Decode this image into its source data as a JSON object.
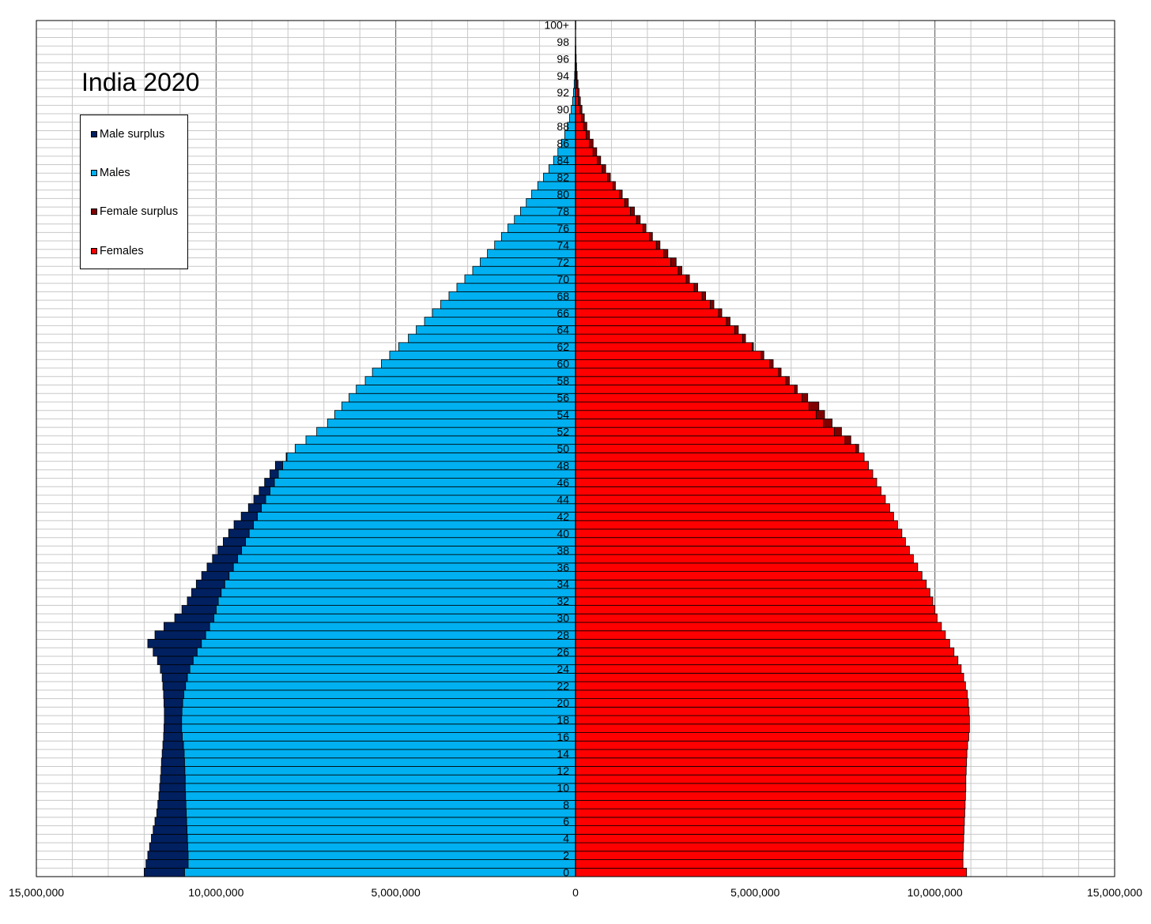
{
  "chart_data": {
    "type": "bar",
    "orientation": "horizontal-population-pyramid",
    "title": "India 2020",
    "age_labels": [
      "0",
      "2",
      "4",
      "6",
      "8",
      "10",
      "12",
      "14",
      "16",
      "18",
      "20",
      "22",
      "24",
      "26",
      "28",
      "30",
      "32",
      "34",
      "36",
      "38",
      "40",
      "42",
      "44",
      "46",
      "48",
      "50",
      "52",
      "54",
      "56",
      "58",
      "60",
      "62",
      "64",
      "66",
      "68",
      "70",
      "72",
      "74",
      "76",
      "78",
      "80",
      "82",
      "84",
      "86",
      "88",
      "90",
      "92",
      "94",
      "96",
      "98",
      "100+"
    ],
    "ages": [
      0,
      1,
      2,
      3,
      4,
      5,
      6,
      7,
      8,
      9,
      10,
      11,
      12,
      13,
      14,
      15,
      16,
      17,
      18,
      19,
      20,
      21,
      22,
      23,
      24,
      25,
      26,
      27,
      28,
      29,
      30,
      31,
      32,
      33,
      34,
      35,
      36,
      37,
      38,
      39,
      40,
      41,
      42,
      43,
      44,
      45,
      46,
      47,
      48,
      49,
      50,
      51,
      52,
      53,
      54,
      55,
      56,
      57,
      58,
      59,
      60,
      61,
      62,
      63,
      64,
      65,
      66,
      67,
      68,
      69,
      70,
      71,
      72,
      73,
      74,
      75,
      76,
      77,
      78,
      79,
      80,
      81,
      82,
      83,
      84,
      85,
      86,
      87,
      88,
      89,
      90,
      91,
      92,
      93,
      94,
      95,
      96,
      97,
      98,
      99,
      100
    ],
    "males": [
      12000000,
      11950000,
      11900000,
      11850000,
      11800000,
      11750000,
      11700000,
      11650000,
      11620000,
      11590000,
      11570000,
      11550000,
      11530000,
      11520000,
      11500000,
      11480000,
      11460000,
      11450000,
      11440000,
      11440000,
      11450000,
      11460000,
      11480000,
      11500000,
      11550000,
      11630000,
      11750000,
      11900000,
      11700000,
      11450000,
      11150000,
      10950000,
      10800000,
      10680000,
      10550000,
      10400000,
      10250000,
      10100000,
      9950000,
      9800000,
      9650000,
      9500000,
      9300000,
      9100000,
      8950000,
      8800000,
      8650000,
      8500000,
      8350000,
      8050000,
      7800000,
      7500000,
      7200000,
      6900000,
      6700000,
      6500000,
      6300000,
      6100000,
      5850000,
      5650000,
      5400000,
      5170000,
      4920000,
      4650000,
      4430000,
      4200000,
      3980000,
      3750000,
      3520000,
      3300000,
      3080000,
      2860000,
      2650000,
      2450000,
      2250000,
      2060000,
      1880000,
      1700000,
      1530000,
      1370000,
      1220000,
      1050000,
      890000,
      740000,
      610000,
      490000,
      390000,
      300000,
      225000,
      165000,
      118000,
      82000,
      56000,
      37000,
      24000,
      15000,
      9000,
      5500,
      3200,
      1900,
      3500
    ],
    "females": [
      10880000,
      10780000,
      10780000,
      10790000,
      10800000,
      10810000,
      10820000,
      10830000,
      10840000,
      10850000,
      10860000,
      10860000,
      10870000,
      10880000,
      10890000,
      10910000,
      10940000,
      10960000,
      10960000,
      10950000,
      10930000,
      10900000,
      10850000,
      10800000,
      10730000,
      10640000,
      10530000,
      10410000,
      10290000,
      10180000,
      10060000,
      10000000,
      9940000,
      9860000,
      9760000,
      9640000,
      9520000,
      9400000,
      9290000,
      9180000,
      9080000,
      8960000,
      8850000,
      8740000,
      8620000,
      8500000,
      8380000,
      8270000,
      8150000,
      8030000,
      7880000,
      7660000,
      7400000,
      7140000,
      6930000,
      6770000,
      6460000,
      6170000,
      5950000,
      5720000,
      5500000,
      5240000,
      4950000,
      4730000,
      4530000,
      4300000,
      4070000,
      3850000,
      3620000,
      3400000,
      3170000,
      2960000,
      2800000,
      2570000,
      2350000,
      2140000,
      1960000,
      1800000,
      1640000,
      1470000,
      1300000,
      1110000,
      970000,
      840000,
      700000,
      590000,
      490000,
      390000,
      315000,
      245000,
      180000,
      135000,
      100000,
      70000,
      46000,
      30000,
      19000,
      11500,
      6800,
      4000,
      8500
    ],
    "xlim": [
      -15000000,
      15000000
    ],
    "x_tick_labels": [
      "15,000,000",
      "10,000,000",
      "5,000,000",
      "0",
      "5,000,000",
      "10,000,000",
      "15,000,000"
    ],
    "x_ticks": [
      -15000000,
      -10000000,
      -5000000,
      0,
      5000000,
      10000000,
      15000000
    ],
    "grid": true,
    "legend_position": "upper-left",
    "legend": [
      {
        "label": "Male surplus",
        "color": "#002060"
      },
      {
        "label": "Males",
        "color": "#00b0f0"
      },
      {
        "label": "Female surplus",
        "color": "#800000"
      },
      {
        "label": "Females",
        "color": "#ff0000"
      }
    ]
  }
}
